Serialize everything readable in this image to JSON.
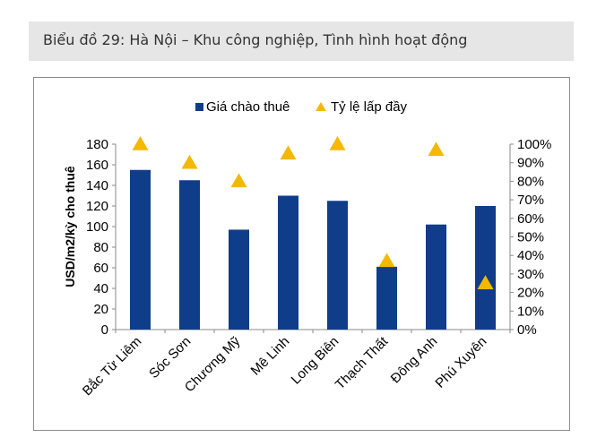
{
  "caption": "Biểu đồ 29: Hà Nội – Khu công nghiệp, Tình hình hoạt động",
  "colors": {
    "bar": "#0f3d8a",
    "marker": "#f5b800",
    "caption_bg": "#e6e6e6",
    "frame": "#8c8c8c"
  },
  "chart_data": {
    "type": "bar",
    "title": "",
    "categories": [
      "Bắc Từ Liêm",
      "Sóc Sơn",
      "Chương Mỹ",
      "Mê Linh",
      "Long Biên",
      "Thạch Thất",
      "Đông Anh",
      "Phú Xuyên"
    ],
    "series": [
      {
        "name": "Giá chào thuê",
        "kind": "bar",
        "axis": "left",
        "color": "#0f3d8a",
        "values": [
          155,
          145,
          97,
          130,
          125,
          61,
          102,
          120
        ]
      },
      {
        "name": "Tỷ lệ lấp đầy",
        "kind": "marker",
        "axis": "right",
        "color": "#f5b800",
        "values": [
          100,
          90,
          80,
          95,
          100,
          37,
          97,
          25
        ]
      }
    ],
    "ylabel": "USD/m2/kỳ cho thuê",
    "ylim": [
      0,
      180
    ],
    "yticks": [
      "0",
      "20",
      "40",
      "60",
      "80",
      "100",
      "120",
      "140",
      "160",
      "180"
    ],
    "y2lim": [
      0,
      100
    ],
    "y2ticks": [
      "0%",
      "10%",
      "20%",
      "30%",
      "40%",
      "50%",
      "60%",
      "70%",
      "80%",
      "90%",
      "100%"
    ],
    "legend": "top",
    "grid": false
  }
}
